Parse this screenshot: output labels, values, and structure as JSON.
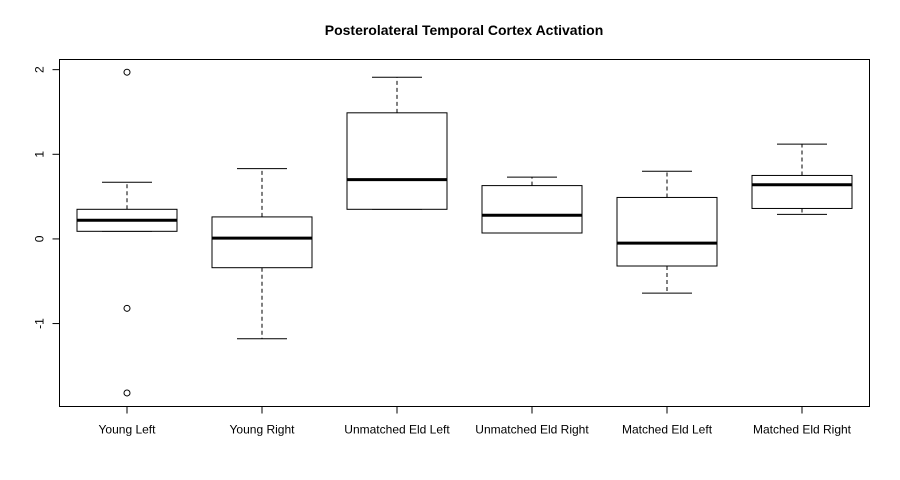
{
  "chart_data": {
    "type": "boxplot",
    "title": "Posterolateral Temporal Cortex Activation",
    "xlabel": "",
    "ylabel": "",
    "ylim": [
      -1.98,
      2.12
    ],
    "yticks": [
      -1,
      0,
      1,
      2
    ],
    "yticklabels": [
      "-1",
      "0",
      "1",
      "2"
    ],
    "categories": [
      "Young Left",
      "Young Right",
      "Unmatched Eld Left",
      "Unmatched Eld Right",
      "Matched Eld Left",
      "Matched Eld Right"
    ],
    "boxes": [
      {
        "category": "Young Left",
        "whisker_low": 0.09,
        "q1": 0.09,
        "median": 0.22,
        "q3": 0.35,
        "whisker_high": 0.67,
        "outliers": [
          1.97,
          -0.82,
          -1.82
        ]
      },
      {
        "category": "Young Right",
        "whisker_low": -1.18,
        "q1": -0.34,
        "median": 0.01,
        "q3": 0.26,
        "whisker_high": 0.83,
        "outliers": []
      },
      {
        "category": "Unmatched Eld Left",
        "whisker_low": 0.35,
        "q1": 0.35,
        "median": 0.7,
        "q3": 1.49,
        "whisker_high": 1.91,
        "outliers": []
      },
      {
        "category": "Unmatched Eld Right",
        "whisker_low": 0.07,
        "q1": 0.07,
        "median": 0.28,
        "q3": 0.63,
        "whisker_high": 0.73,
        "outliers": []
      },
      {
        "category": "Matched Eld Left",
        "whisker_low": -0.64,
        "q1": -0.32,
        "median": -0.05,
        "q3": 0.49,
        "whisker_high": 0.8,
        "outliers": []
      },
      {
        "category": "Matched Eld Right",
        "whisker_low": 0.29,
        "q1": 0.36,
        "median": 0.64,
        "q3": 0.75,
        "whisker_high": 1.12,
        "outliers": []
      }
    ],
    "grid": false,
    "legend": "none"
  }
}
